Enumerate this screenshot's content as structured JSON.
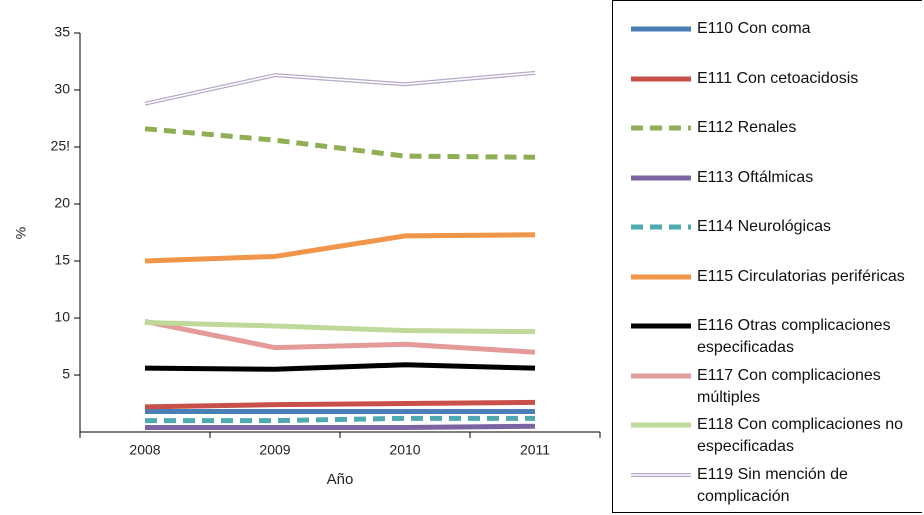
{
  "chart_data": {
    "type": "line",
    "categories": [
      "2008",
      "2009",
      "2010",
      "2011"
    ],
    "x_label": "Año",
    "y_label": "%",
    "ylim": [
      0,
      35
    ],
    "yticks": [
      5,
      10,
      15,
      20,
      {
        "value": 25,
        "label": "25!"
      },
      30,
      35
    ],
    "series": [
      {
        "name": "E110 Con coma",
        "color": "#4a7fb5",
        "values": [
          1.8,
          1.8,
          1.8,
          1.8
        ]
      },
      {
        "name": "E111 Con cetoacidosis",
        "color": "#c8504a",
        "values": [
          2.2,
          2.4,
          2.5,
          2.6
        ]
      },
      {
        "name": "E112 Renales",
        "color": "#8fae55",
        "dashed": true,
        "values": [
          26.6,
          25.6,
          24.2,
          24.1
        ]
      },
      {
        "name": "E113 Oftálmicas",
        "color": "#7b64a3",
        "values": [
          0.4,
          0.4,
          0.4,
          0.5
        ]
      },
      {
        "name": "E114 Neurológicas",
        "color": "#4fa9b3",
        "dashed": true,
        "values": [
          1.0,
          1.0,
          1.2,
          1.2
        ]
      },
      {
        "name": "E115 Circulatorias periféricas",
        "color": "#f0954a",
        "values": [
          15.0,
          15.4,
          17.2,
          17.3
        ]
      },
      {
        "name": "E116 Otras complicaciones especificadas",
        "color": "#000000",
        "values": [
          5.6,
          5.5,
          5.9,
          5.6
        ]
      },
      {
        "name": "E117 Con complicaciones múltiples",
        "color": "#e39a98",
        "values": [
          9.7,
          7.4,
          7.7,
          7.0
        ]
      },
      {
        "name": "E118 Con complicaciones no especificadas",
        "color": "#bfd99a",
        "values": [
          9.6,
          9.3,
          8.9,
          8.8
        ]
      },
      {
        "name": "E119 Sin mención de complicación",
        "color": "#b8a9cc",
        "double": true,
        "values": [
          28.8,
          31.3,
          30.5,
          31.5
        ]
      }
    ]
  }
}
